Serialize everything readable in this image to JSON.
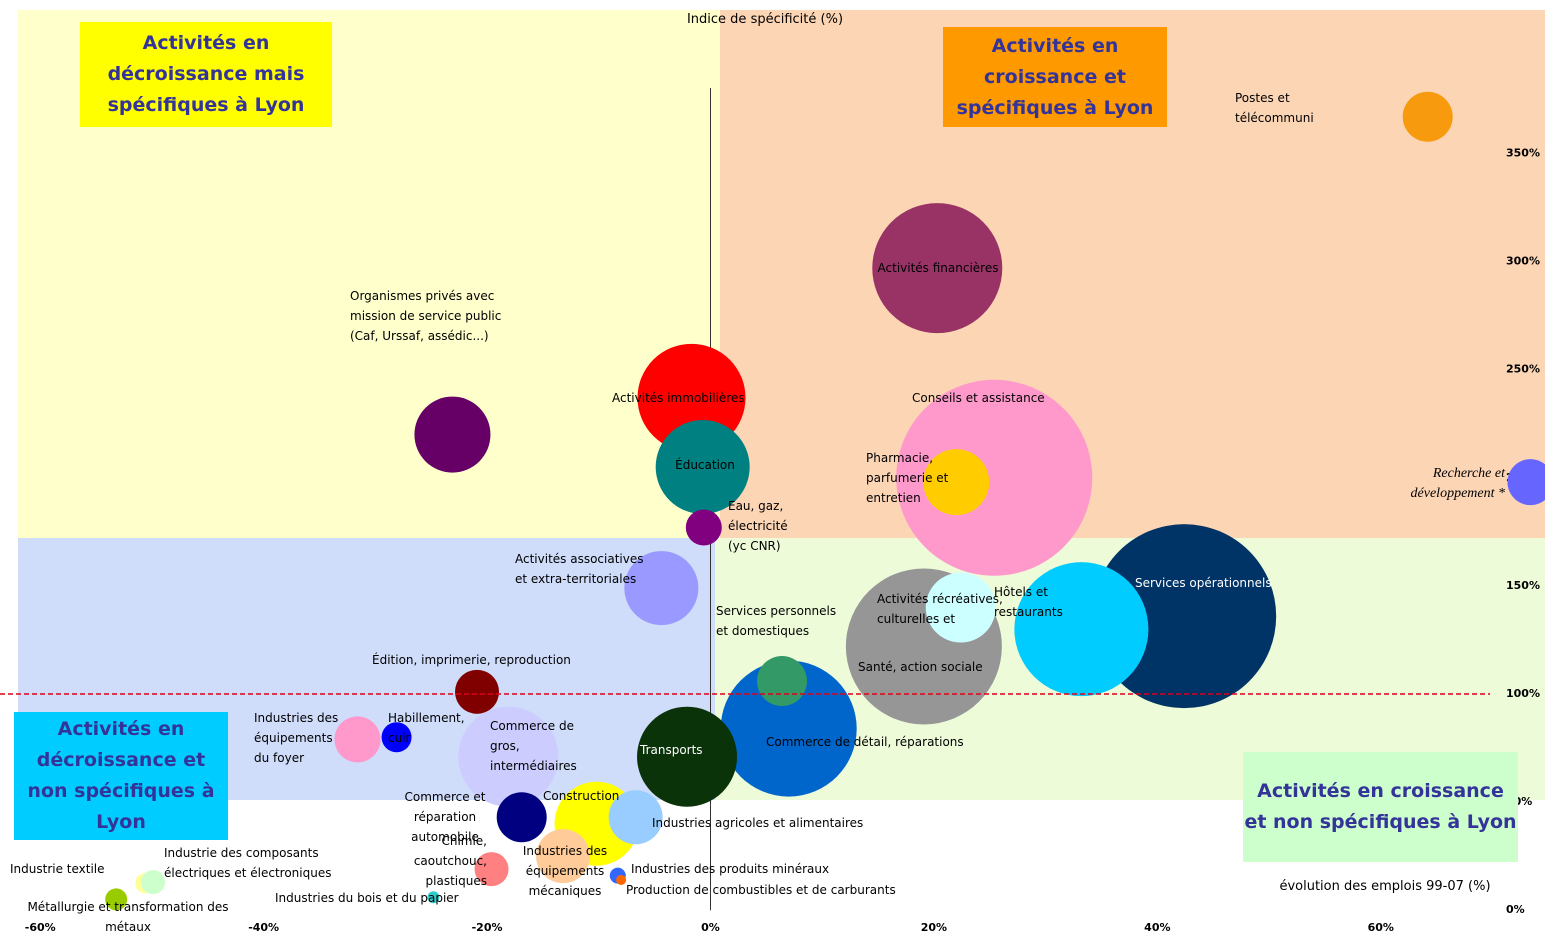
{
  "chart_data": {
    "type": "bubble",
    "ylabel": "Indice de spécificité (%)",
    "xlabel": "évolution des emplois 99-07 (%)",
    "xlim": [
      -63.6,
      74.7
    ],
    "ylim": [
      -11,
      421
    ],
    "xticks": [
      {
        "value": -60,
        "label": "-60%"
      },
      {
        "value": -40,
        "label": "-40%"
      },
      {
        "value": -20,
        "label": "-20%"
      },
      {
        "value": 0,
        "label": "0%"
      },
      {
        "value": 20,
        "label": "20%"
      },
      {
        "value": 40,
        "label": "40%"
      },
      {
        "value": 60,
        "label": "60%"
      }
    ],
    "yticks": [
      {
        "value": 0,
        "label": "0%"
      },
      {
        "value": 50,
        "label": "50%"
      },
      {
        "value": 100,
        "label": "100%"
      },
      {
        "value": 150,
        "label": "150%"
      },
      {
        "value": 200,
        "label": "200%"
      },
      {
        "value": 250,
        "label": "250%"
      },
      {
        "value": 300,
        "label": "300%"
      },
      {
        "value": 350,
        "label": "350%"
      }
    ],
    "reference_line": 100,
    "annotations": [
      "Activités en décroissance mais spécifiques à Lyon",
      "Activités en croissance et spécifiques à Lyon",
      "Activités en décroissance et non spécifiques à Lyon",
      "Activités en croissance et non spécifiques à Lyon"
    ],
    "series": [
      {
        "name": "Conseils et assistance",
        "color": "#ff99cc",
        "x": 25.4,
        "y": 200,
        "size": 98
      },
      {
        "name": "Services opérationnels",
        "color": "#003366",
        "x": 42.4,
        "y": 136,
        "size": 92
      },
      {
        "name": "Hôtels et restaurants",
        "color": "#00ccff",
        "x": 33.2,
        "y": 130,
        "size": 67
      },
      {
        "name": "Santé, action sociale",
        "color": "#969696",
        "x": 19.1,
        "y": 122,
        "size": 78
      },
      {
        "name": "Commerce de détail, réparations",
        "color": "#0066cc",
        "x": 7.0,
        "y": 84,
        "size": 68
      },
      {
        "name": "Activités financières",
        "color": "#993366",
        "x": 20.3,
        "y": 297,
        "size": 65
      },
      {
        "name": "Activités immobilières",
        "color": "#ff0000",
        "x": -1.7,
        "y": 237,
        "size": 54
      },
      {
        "name": "Éducation",
        "color": "#008080",
        "x": -0.7,
        "y": 205,
        "size": 47
      },
      {
        "name": "Pharmacie, parfumerie et entretien",
        "color": "#ffcc00",
        "x": 22.0,
        "y": 198,
        "size": 33
      },
      {
        "name": "Postes et télécommuni",
        "color": "#f79a0e",
        "x": 64.2,
        "y": 367,
        "size": 25
      },
      {
        "name": "Recherche et développement *",
        "color": "#6666ff",
        "x": 73.4,
        "y": 198,
        "size": 23
      },
      {
        "name": "Eau, gaz, électricité (yc CNR)",
        "color": "#800080",
        "x": -0.6,
        "y": 177,
        "size": 18
      },
      {
        "name": "Organismes privés avec mission de service public (Caf, Urssaf, assédic...)",
        "color": "#660066",
        "x": -23.1,
        "y": 220,
        "size": 38
      },
      {
        "name": "Activités associatives et extra-territoriales",
        "color": "#9999ff",
        "x": -4.4,
        "y": 149,
        "size": 37
      },
      {
        "name": "Activités récréatives, culturelles et",
        "color": "#ccffff",
        "x": 22.4,
        "y": 140,
        "size": 35
      },
      {
        "name": "Services personnels et domestiques",
        "color": "#339966",
        "x": 6.4,
        "y": 106,
        "size": 25
      },
      {
        "name": "Transports",
        "color": "#0a330a",
        "x": -2.1,
        "y": 71,
        "size": 50
      },
      {
        "name": "Édition, imprimerie, reproduction",
        "color": "#800000",
        "x": -20.9,
        "y": 101,
        "size": 22
      },
      {
        "name": "Industries des équipements du foyer",
        "color": "#ff99cc",
        "x": -31.6,
        "y": 79,
        "size": 23
      },
      {
        "name": "Habillement, cuir",
        "color": "#0000ff",
        "x": -28.1,
        "y": 80,
        "size": 15
      },
      {
        "name": "Commerce de gros, intermédiaires",
        "color": "#ccccff",
        "x": -18.1,
        "y": 71,
        "size": 50
      },
      {
        "name": "Construction",
        "color": "#ffff00",
        "x": -10.2,
        "y": 40,
        "size": 42
      },
      {
        "name": "Industries agricoles et alimentaires",
        "color": "#99ccff",
        "x": -6.7,
        "y": 43,
        "size": 27
      },
      {
        "name": "Commerce et réparation automobile",
        "color": "#000080",
        "x": -16.9,
        "y": 43,
        "size": 25
      },
      {
        "name": "Industries des équipements mécaniques",
        "color": "#ffcc99",
        "x": -13.2,
        "y": 25,
        "size": 27
      },
      {
        "name": "Chimie, caoutchouc, plastiques",
        "color": "#ff8080",
        "x": -19.6,
        "y": 19,
        "size": 17
      },
      {
        "name": "Industries des produits minéraux",
        "color": "#3366ff",
        "x": -8.3,
        "y": 16,
        "size": 8
      },
      {
        "name": "Production de combustibles et de carburants",
        "color": "#ff6600",
        "x": -8.0,
        "y": 14,
        "size": 5
      },
      {
        "name": "Industries du bois et du papier",
        "color": "#33cccc",
        "x": -24.8,
        "y": 6,
        "size": 6
      },
      {
        "name": "Industrie textile",
        "color": "#ffff99",
        "x": -50.6,
        "y": 12.5,
        "size": 10
      },
      {
        "name": "Industrie des composants électriques et électroniques",
        "color": "#ccffcc",
        "x": -49.9,
        "y": 13,
        "size": 12
      },
      {
        "name": "Métallurgie et transformation des métaux",
        "color": "#99cc00",
        "x": -53.2,
        "y": 5,
        "size": 11
      }
    ]
  }
}
